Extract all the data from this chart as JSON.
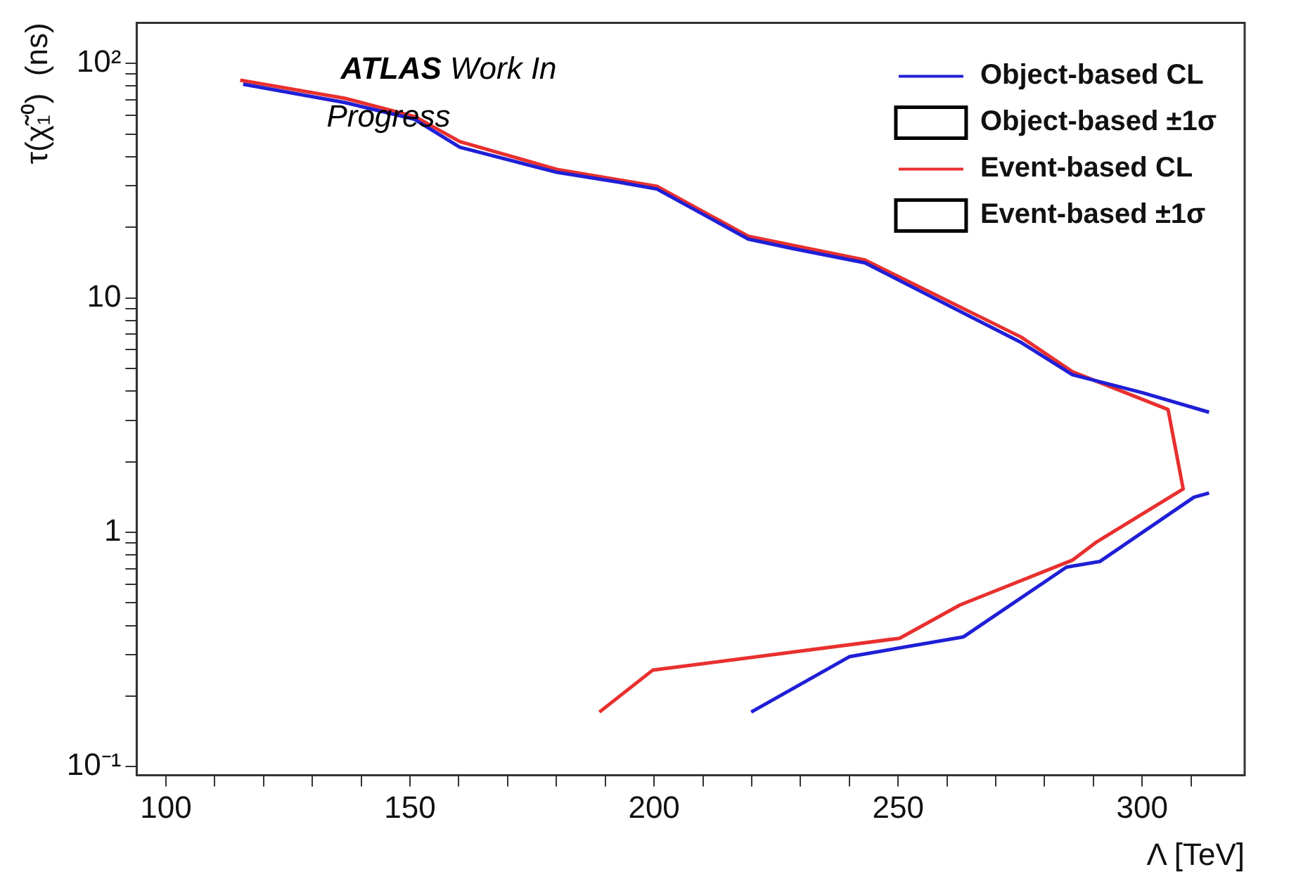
{
  "chart_data": {
    "type": "line",
    "xlabel": "Λ [TeV]",
    "ylabel": "τ(χ̃₁⁰)  (ns)",
    "log": "y",
    "marker": "none",
    "legend": "top right",
    "grid": false,
    "xlim": [
      94,
      321
    ],
    "xticks": [
      100,
      {
        "value": 110,
        "label": null
      },
      {
        "value": 120,
        "label": null
      },
      {
        "value": 130,
        "label": null
      },
      {
        "value": 140,
        "label": null
      },
      150,
      {
        "value": 160,
        "label": null
      },
      {
        "value": 170,
        "label": null
      },
      {
        "value": 180,
        "label": null
      },
      {
        "value": 190,
        "label": null
      },
      200,
      {
        "value": 210,
        "label": null
      },
      {
        "value": 220,
        "label": null
      },
      {
        "value": 230,
        "label": null
      },
      {
        "value": 240,
        "label": null
      },
      250,
      {
        "value": 260,
        "label": null
      },
      {
        "value": 270,
        "label": null
      },
      {
        "value": 280,
        "label": null
      },
      {
        "value": 290,
        "label": null
      },
      300,
      {
        "value": 310,
        "label": null
      }
    ],
    "ylim": [
      0.092,
      149
    ],
    "yticks": [
      {
        "value": 0.1,
        "label": "10⁻¹"
      },
      {
        "value": 0.2,
        "label": null
      },
      {
        "value": 0.3,
        "label": null
      },
      {
        "value": 0.4,
        "label": null
      },
      {
        "value": 0.5,
        "label": null
      },
      {
        "value": 0.6,
        "label": null
      },
      {
        "value": 0.7,
        "label": null
      },
      {
        "value": 0.8,
        "label": null
      },
      {
        "value": 0.9,
        "label": null
      },
      1,
      {
        "value": 2,
        "label": null
      },
      {
        "value": 3,
        "label": null
      },
      {
        "value": 4,
        "label": null
      },
      {
        "value": 5,
        "label": null
      },
      {
        "value": 6,
        "label": null
      },
      {
        "value": 7,
        "label": null
      },
      {
        "value": 8,
        "label": null
      },
      {
        "value": 9,
        "label": null
      },
      10,
      {
        "value": 20,
        "label": null
      },
      {
        "value": 30,
        "label": null
      },
      {
        "value": 40,
        "label": null
      },
      {
        "value": 50,
        "label": null
      },
      {
        "value": 60,
        "label": null
      },
      {
        "value": 70,
        "label": null
      },
      {
        "value": 80,
        "label": null
      },
      {
        "value": 90,
        "label": null
      },
      {
        "value": 100,
        "label": "10²"
      }
    ],
    "annotations": [
      "ATLAS Work In Progress"
    ],
    "series": [
      {
        "name": "Object-based CL",
        "color": "#1f1fd6",
        "x": [
          115.8,
          136.6,
          150.9,
          160.2,
          180.1,
          192.5,
          200.6,
          219.3,
          228.6,
          243.2,
          275.2,
          285.7,
          300,
          313.7
        ],
        "values": [
          81.5,
          68.1,
          57.8,
          43.9,
          34.3,
          31.2,
          29.1,
          17.8,
          16.2,
          14.1,
          6.45,
          4.7,
          3.94,
          3.25
        ]
      },
      {
        "color": "#1f1fd6",
        "x": [
          313.7,
          310.6,
          291.3,
          284.5,
          263.4,
          240.1,
          219.9
        ],
        "values": [
          1.47,
          1.41,
          0.75,
          0.71,
          0.358,
          0.295,
          0.171
        ]
      },
      {
        "name": "Object-based ±1σ",
        "type": "area",
        "color": "#000000"
      },
      {
        "name": "Event-based CL",
        "color": "#e8302f",
        "x": [
          115.2,
          136.6,
          150.9,
          160.2,
          180.1,
          200.6,
          219.3,
          243.2,
          275.2,
          285.7,
          305.3,
          308.4,
          290.7,
          285.7,
          262.7,
          250.3,
          199.7,
          188.8
        ],
        "values": [
          84.8,
          71,
          59.4,
          46.4,
          35.3,
          29.9,
          18.3,
          14.5,
          6.8,
          4.84,
          3.34,
          1.53,
          0.91,
          0.76,
          0.49,
          0.353,
          0.258,
          0.171
        ]
      },
      {
        "name": "Event-based ±1σ",
        "type": "area",
        "color": "#000000"
      }
    ]
  }
}
